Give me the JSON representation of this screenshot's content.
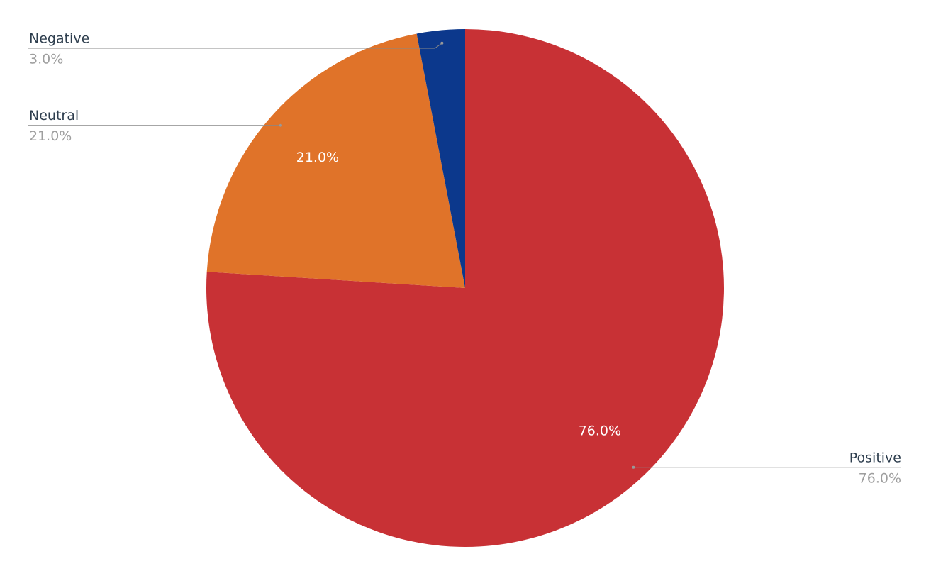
{
  "chart_data": {
    "type": "pie",
    "categories": [
      "Positive",
      "Neutral",
      "Negative"
    ],
    "values": [
      76,
      21,
      3
    ],
    "value_labels": [
      "76.0%",
      "21.0%",
      "3.0%"
    ],
    "colors": [
      "#c83135",
      "#e07329",
      "#0c388c"
    ]
  }
}
